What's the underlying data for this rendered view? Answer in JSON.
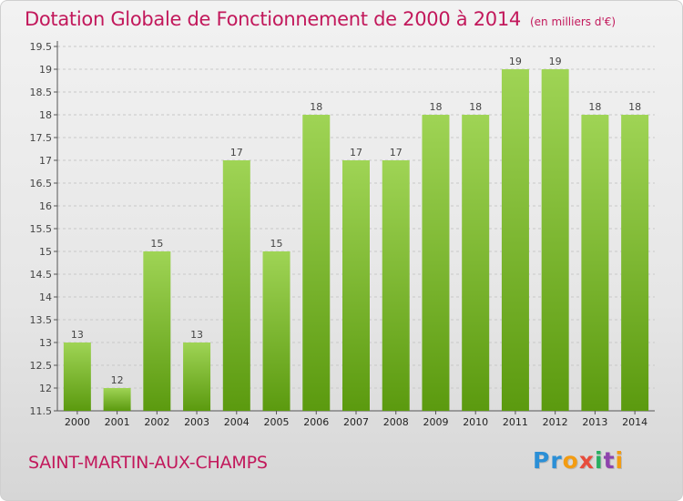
{
  "colors": {
    "accent": "#c2185b",
    "bar_light": "#9fd455",
    "bar_dark": "#5b9a0f",
    "grid": "#c8c8c8"
  },
  "footer": {
    "commune": "SAINT-MARTIN-AUX-CHAMPS",
    "logo_letters": [
      {
        "char": "P",
        "color": "#2b8fd6"
      },
      {
        "char": "r",
        "color": "#2b8fd6"
      },
      {
        "char": "o",
        "color": "#f39c12"
      },
      {
        "char": "x",
        "color": "#e74c3c"
      },
      {
        "char": "i",
        "color": "#27ae60"
      },
      {
        "char": "t",
        "color": "#8e44ad"
      },
      {
        "char": "i",
        "color": "#f39c12"
      }
    ]
  },
  "chart_data": {
    "type": "bar",
    "title": "Dotation Globale de Fonctionnement de 2000 à 2014",
    "subtitle": "(en milliers d'€)",
    "xlabel": "",
    "ylabel": "",
    "categories": [
      "2000",
      "2001",
      "2002",
      "2003",
      "2004",
      "2005",
      "2006",
      "2007",
      "2008",
      "2009",
      "2010",
      "2011",
      "2012",
      "2013",
      "2014"
    ],
    "values": [
      13,
      12,
      15,
      13,
      17,
      15,
      18,
      17,
      17,
      18,
      18,
      19,
      19,
      18,
      18
    ],
    "ylim": [
      11.5,
      19.5
    ],
    "yticks": [
      "11.5",
      "12",
      "12.5",
      "13",
      "13.5",
      "14",
      "14.5",
      "15",
      "15.5",
      "16",
      "16.5",
      "17",
      "17.5",
      "18",
      "18.5",
      "19",
      "19.5"
    ],
    "grid": true,
    "legend": "none"
  }
}
